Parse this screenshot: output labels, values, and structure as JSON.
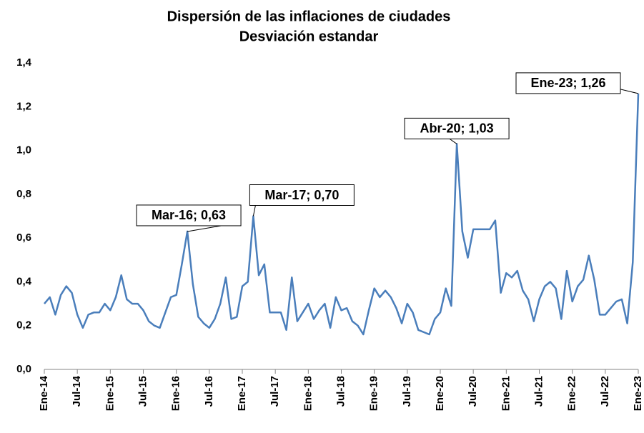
{
  "chart_data": {
    "type": "line",
    "title": "Dispersión de las inflaciones de ciudades",
    "subtitle": "Desviación estandar",
    "categories": [
      "Ene-14",
      null,
      null,
      null,
      null,
      null,
      "Jul-14",
      null,
      null,
      null,
      null,
      null,
      "Ene-15",
      null,
      null,
      null,
      null,
      null,
      "Jul-15",
      null,
      null,
      null,
      null,
      null,
      "Ene-16",
      null,
      null,
      null,
      null,
      null,
      "Jul-16",
      null,
      null,
      null,
      null,
      null,
      "Ene-17",
      null,
      null,
      null,
      null,
      null,
      "Jul-17",
      null,
      null,
      null,
      null,
      null,
      "Ene-18",
      null,
      null,
      null,
      null,
      null,
      "Jul-18",
      null,
      null,
      null,
      null,
      null,
      "Ene-19",
      null,
      null,
      null,
      null,
      null,
      "Jul-19",
      null,
      null,
      null,
      null,
      null,
      "Ene-20",
      null,
      null,
      null,
      null,
      null,
      "Jul-20",
      null,
      null,
      null,
      null,
      null,
      "Ene-21",
      null,
      null,
      null,
      null,
      null,
      "Jul-21",
      null,
      null,
      null,
      null,
      null,
      "Ene-22",
      null,
      null,
      null,
      null,
      null,
      "Jul-22",
      null,
      null,
      null,
      null,
      null,
      "Ene-23"
    ],
    "values": [
      0.3,
      0.33,
      0.25,
      0.34,
      0.38,
      0.35,
      0.25,
      0.19,
      0.25,
      0.26,
      0.26,
      0.3,
      0.27,
      0.33,
      0.43,
      0.32,
      0.3,
      0.3,
      0.27,
      0.22,
      0.2,
      0.19,
      0.26,
      0.33,
      0.34,
      0.48,
      0.63,
      0.39,
      0.24,
      0.21,
      0.19,
      0.23,
      0.3,
      0.42,
      0.23,
      0.24,
      0.38,
      0.4,
      0.7,
      0.43,
      0.48,
      0.26,
      0.26,
      0.26,
      0.18,
      0.42,
      0.22,
      0.26,
      0.3,
      0.23,
      0.27,
      0.3,
      0.19,
      0.33,
      0.27,
      0.28,
      0.22,
      0.2,
      0.16,
      0.27,
      0.37,
      0.33,
      0.36,
      0.33,
      0.28,
      0.21,
      0.3,
      0.26,
      0.18,
      0.17,
      0.16,
      0.23,
      0.26,
      0.37,
      0.29,
      1.03,
      0.63,
      0.51,
      0.64,
      0.64,
      0.64,
      0.64,
      0.68,
      0.35,
      0.44,
      0.42,
      0.45,
      0.36,
      0.32,
      0.22,
      0.32,
      0.38,
      0.4,
      0.37,
      0.23,
      0.45,
      0.31,
      0.38,
      0.41,
      0.52,
      0.41,
      0.25,
      0.25,
      0.28,
      0.31,
      0.32,
      0.21,
      0.49,
      1.26
    ],
    "value_labels": [
      null,
      null,
      null,
      null,
      null,
      null,
      null,
      null,
      null,
      null,
      null,
      null,
      null,
      null,
      null,
      null,
      null,
      null,
      null,
      null,
      null,
      null,
      null,
      null,
      null,
      null,
      "Mar-16; 0,63",
      null,
      null,
      null,
      null,
      null,
      null,
      null,
      null,
      null,
      null,
      null,
      "Mar-17; 0,70",
      null,
      null,
      null,
      null,
      null,
      null,
      null,
      null,
      null,
      null,
      null,
      null,
      null,
      null,
      null,
      null,
      null,
      null,
      null,
      null,
      null,
      null,
      null,
      null,
      null,
      null,
      null,
      null,
      null,
      null,
      null,
      null,
      null,
      null,
      null,
      null,
      "Abr-20; 1,03",
      null,
      null,
      null,
      null,
      null,
      null,
      null,
      null,
      null,
      null,
      null,
      null,
      null,
      null,
      null,
      null,
      null,
      null,
      null,
      null,
      null,
      null,
      null,
      null,
      null,
      null,
      null,
      null,
      null,
      null,
      null,
      null,
      "Ene-23; 1,26"
    ],
    "color": "#4a7ebb",
    "ylim": [
      0,
      1.4
    ],
    "yticks": [
      {
        "value": 0,
        "label": "0,0"
      },
      {
        "value": 0.2,
        "label": "0,2"
      },
      {
        "value": 0.4,
        "label": "0,4"
      },
      {
        "value": 0.6,
        "label": "0,6"
      },
      {
        "value": 0.8,
        "label": "0,8"
      },
      {
        "value": 1.0,
        "label": "1,0"
      },
      {
        "value": 1.2,
        "label": "1,2"
      },
      {
        "value": 1.4,
        "label": "1,4"
      }
    ],
    "grid": false
  }
}
